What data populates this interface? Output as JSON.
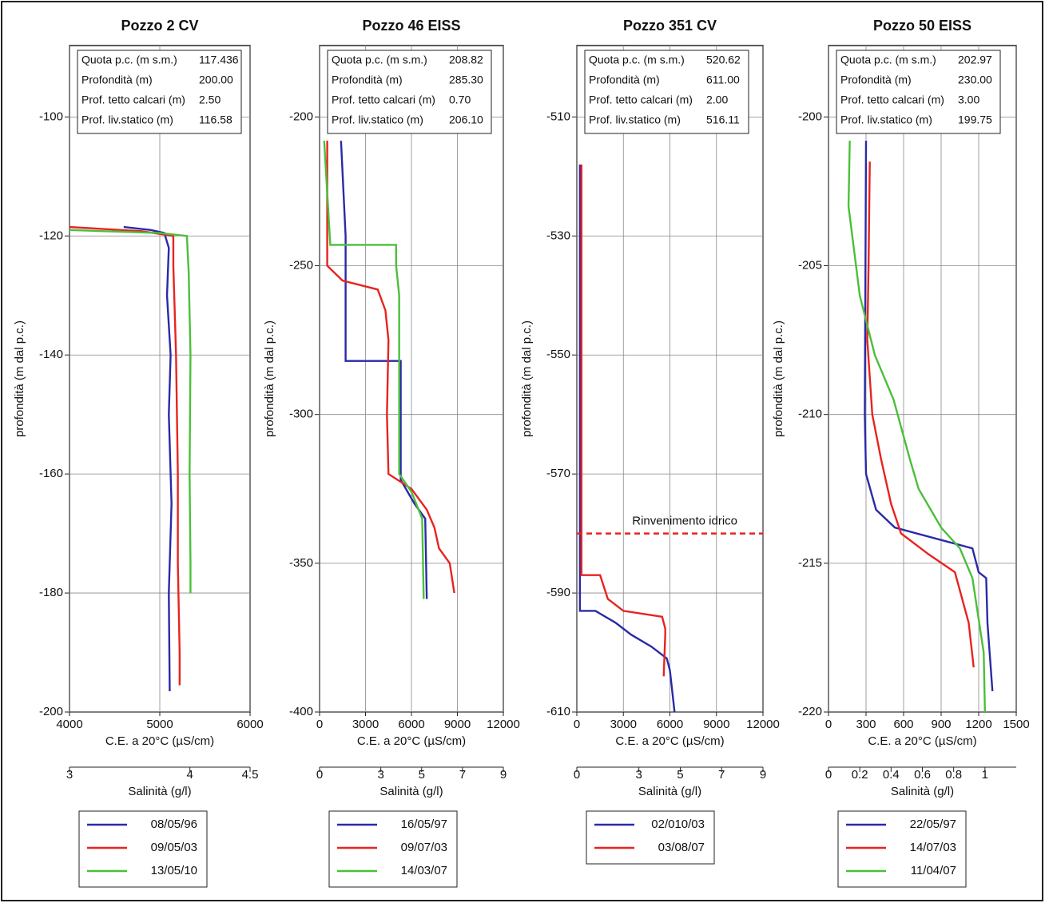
{
  "chart_data": [
    {
      "type": "line",
      "title": "Pozzo 2 CV",
      "xlabel": "C.E. a 20°C (µS/cm)",
      "ylabel": "profondità (m dal p.c.)",
      "x2label": "Salinità (g/l)",
      "xlim": [
        4000,
        6000
      ],
      "xticks": [
        4000,
        5000,
        6000
      ],
      "ylim": [
        -200,
        -88
      ],
      "yticks": [
        -100,
        -120,
        -140,
        -160,
        -180,
        -200
      ],
      "x2lim": [
        3,
        4.5
      ],
      "x2ticks": [
        3,
        4,
        4.5
      ],
      "grid": true,
      "info": [
        [
          "Quota p.c. (m s.m.)",
          "117.436"
        ],
        [
          "Profondità (m)",
          "200.00"
        ],
        [
          "Prof. tetto calcari (m)",
          "2.50"
        ],
        [
          "Prof. liv.statico (m)",
          "116.58"
        ]
      ],
      "series": [
        {
          "name": "08/05/96",
          "color": "#2a2aa8",
          "x": [
            4600,
            4900,
            5050,
            5100,
            5080,
            5120,
            5100,
            5130,
            5100,
            5110
          ],
          "y": [
            -118.5,
            -119,
            -119.5,
            -122,
            -130,
            -140,
            -150,
            -165,
            -180,
            -196.5
          ]
        },
        {
          "name": "09/05/03",
          "color": "#e8231f",
          "x": [
            4000,
            4800,
            5150,
            5150,
            5180,
            5200,
            5200,
            5220,
            5220
          ],
          "y": [
            -118.5,
            -119.2,
            -120,
            -125,
            -140,
            -160,
            -175,
            -190,
            -195.5
          ]
        },
        {
          "name": "13/05/10",
          "color": "#4bbf3a",
          "x": [
            4000,
            5000,
            5300,
            5320,
            5340,
            5330,
            5340,
            5340
          ],
          "y": [
            -119,
            -119.5,
            -120,
            -126,
            -140,
            -160,
            -175,
            -180
          ]
        }
      ]
    },
    {
      "type": "line",
      "title": "Pozzo 46 EISS",
      "xlabel": "C.E. a 20°C (µS/cm)",
      "ylabel": "profondità (m dal p.c.)",
      "x2label": "Salinità (g/l)",
      "xlim": [
        0,
        12000
      ],
      "xticks": [
        0,
        3000,
        6000,
        9000,
        12000
      ],
      "ylim": [
        -400,
        -176
      ],
      "yticks": [
        -200,
        -250,
        -300,
        -350,
        -400
      ],
      "x2lim": [
        0,
        9
      ],
      "x2ticks": [
        0,
        3,
        5,
        7,
        9
      ],
      "grid": true,
      "info": [
        [
          "Quota p.c. (m s.m.)",
          "208.82"
        ],
        [
          "Profondità (m)",
          "285.30"
        ],
        [
          "Prof. tetto calcari (m)",
          "0.70"
        ],
        [
          "Prof. liv.statico (m)",
          "206.10"
        ]
      ],
      "series": [
        {
          "name": "16/05/97",
          "color": "#2a2aa8",
          "x": [
            1400,
            1700,
            1700,
            5300,
            5300,
            6200,
            6900,
            7000
          ],
          "y": [
            -208,
            -240,
            -282,
            -282,
            -322,
            -330,
            -335,
            -362
          ]
        },
        {
          "name": "09/07/03",
          "color": "#e8231f",
          "x": [
            500,
            500,
            1500,
            3800,
            4300,
            4500,
            4400,
            4500,
            6000,
            7000,
            7500,
            7800,
            8500,
            8800
          ],
          "y": [
            -208,
            -250,
            -255,
            -258,
            -265,
            -275,
            -300,
            -320,
            -325,
            -332,
            -338,
            -345,
            -350,
            -360
          ]
        },
        {
          "name": "14/03/07",
          "color": "#4bbf3a",
          "x": [
            300,
            700,
            5000,
            5000,
            5200,
            5200,
            6000,
            6700,
            6800
          ],
          "y": [
            -208,
            -243,
            -243,
            -250,
            -260,
            -320,
            -326,
            -335,
            -362
          ]
        }
      ]
    },
    {
      "type": "line",
      "title": "Pozzo 351 CV",
      "xlabel": "C.E. a 20°C (µS/cm)",
      "ylabel": "profondità (m dal p.c.)",
      "x2label": "Salinità (g/l)",
      "xlim": [
        0,
        12000
      ],
      "xticks": [
        0,
        3000,
        6000,
        9000,
        12000
      ],
      "ylim": [
        -610,
        -498
      ],
      "yticks": [
        -510,
        -530,
        -550,
        -570,
        -590,
        -610
      ],
      "x2lim": [
        0,
        9
      ],
      "x2ticks": [
        0,
        3,
        5,
        7,
        9
      ],
      "grid": true,
      "info": [
        [
          "Quota p.c. (m s.m.)",
          "520.62"
        ],
        [
          "Profondità (m)",
          "611.00"
        ],
        [
          "Prof. tetto calcari (m)",
          "2.00"
        ],
        [
          "Prof. liv.statico (m)",
          "516.11"
        ]
      ],
      "annotation": {
        "text": "Rinvenimento idrico",
        "y": -580,
        "color": "#e8231f"
      },
      "series": [
        {
          "name": "02/010/03",
          "color": "#2a2aa8",
          "x": [
            200,
            200,
            1200,
            2500,
            3500,
            4800,
            5800,
            6000,
            6300
          ],
          "y": [
            -518,
            -593,
            -593,
            -595,
            -597,
            -599,
            -601,
            -603,
            -610
          ]
        },
        {
          "name": "03/08/07",
          "color": "#e8231f",
          "x": [
            300,
            300,
            1500,
            2000,
            3000,
            5500,
            5700,
            5700,
            5600
          ],
          "y": [
            -518,
            -587,
            -587,
            -591,
            -593,
            -594,
            -596,
            -597,
            -604
          ]
        }
      ]
    },
    {
      "type": "line",
      "title": "Pozzo 50 EISS",
      "xlabel": "C.E. a 20°C (µS/cm)",
      "ylabel": "profondità (m dal p.c.)",
      "x2label": "Salinità (g/l)",
      "xlim": [
        0,
        1500
      ],
      "xticks": [
        0,
        300,
        600,
        900,
        1200,
        1500
      ],
      "ylim": [
        -220,
        -197.6
      ],
      "yticks": [
        -200,
        -205,
        -210,
        -215,
        -220
      ],
      "x2lim": [
        0,
        1.2
      ],
      "x2ticks": [
        0,
        0.2,
        0.4,
        0.6,
        0.8,
        1
      ],
      "grid": true,
      "info": [
        [
          "Quota p.c. (m s.m.)",
          "202.97"
        ],
        [
          "Profondità (m)",
          "230.00"
        ],
        [
          "Prof. tetto calcari (m)",
          "3.00"
        ],
        [
          "Prof. liv.statico (m)",
          "199.75"
        ]
      ],
      "series": [
        {
          "name": "22/05/97",
          "color": "#2a2aa8",
          "x": [
            300,
            290,
            300,
            380,
            530,
            1150,
            1200,
            1260,
            1270,
            1310
          ],
          "y": [
            -200.8,
            -210,
            -212,
            -213.2,
            -213.8,
            -214.5,
            -215.3,
            -215.5,
            -217,
            -219.3
          ]
        },
        {
          "name": "14/07/03",
          "color": "#e8231f",
          "x": [
            330,
            320,
            310,
            350,
            420,
            500,
            580,
            800,
            1010,
            1120,
            1160
          ],
          "y": [
            -201.5,
            -205,
            -207.5,
            -210,
            -211.5,
            -213,
            -214,
            -214.7,
            -215.3,
            -217,
            -218.5
          ]
        },
        {
          "name": "11/04/07",
          "color": "#4bbf3a",
          "x": [
            170,
            160,
            250,
            370,
            520,
            650,
            720,
            900,
            1050,
            1150,
            1240,
            1250
          ],
          "y": [
            -200.8,
            -203,
            -206,
            -208,
            -209.5,
            -211.5,
            -212.5,
            -213.8,
            -214.5,
            -215.5,
            -218,
            -220
          ]
        }
      ]
    }
  ]
}
